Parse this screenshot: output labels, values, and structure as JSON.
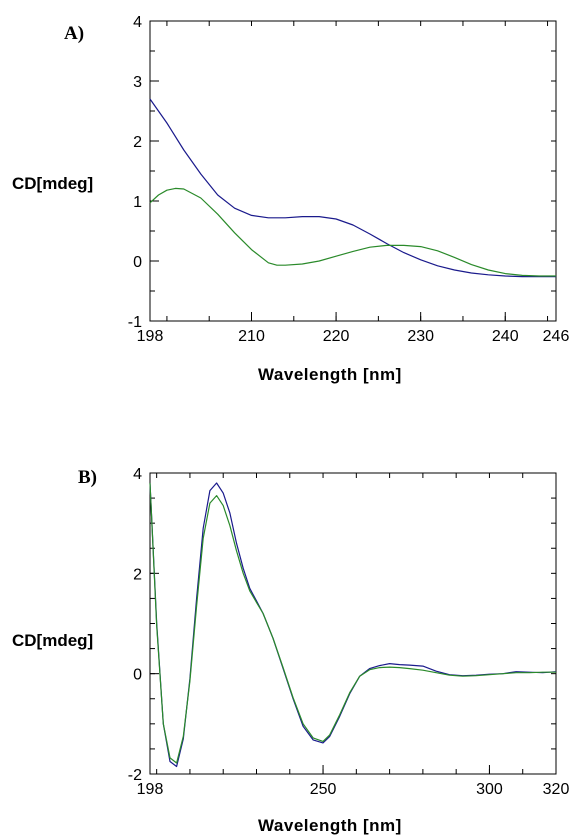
{
  "colors": {
    "series_a": "#1a1a8c",
    "series_b": "#2a8a2a",
    "axis": "#000000"
  },
  "chart_data": [
    {
      "type": "line",
      "panel_label": "A)",
      "xlabel": "Wavelength [nm]",
      "ylabel": "CD[mdeg]",
      "xlim": [
        198,
        246
      ],
      "ylim": [
        -1,
        4
      ],
      "xticks": [
        198,
        210,
        220,
        230,
        240,
        246
      ],
      "yticks": [
        -1,
        0,
        1,
        2,
        3,
        4
      ],
      "grid": false,
      "series": [
        {
          "color": "#1a1a8c",
          "x": [
            198,
            200,
            202,
            204,
            206,
            208,
            210,
            212,
            214,
            216,
            218,
            220,
            222,
            224,
            226,
            228,
            230,
            232,
            234,
            236,
            238,
            240,
            242,
            244,
            246
          ],
          "y": [
            2.7,
            2.3,
            1.85,
            1.45,
            1.1,
            0.88,
            0.76,
            0.72,
            0.72,
            0.74,
            0.74,
            0.7,
            0.6,
            0.45,
            0.29,
            0.14,
            0.02,
            -0.08,
            -0.15,
            -0.2,
            -0.23,
            -0.25,
            -0.26,
            -0.26,
            -0.26
          ]
        },
        {
          "color": "#2a8a2a",
          "x": [
            198,
            199,
            200,
            201,
            202,
            204,
            206,
            208,
            210,
            212,
            213,
            214,
            216,
            218,
            220,
            222,
            224,
            226,
            228,
            230,
            232,
            234,
            236,
            238,
            240,
            242,
            244,
            246
          ],
          "y": [
            0.97,
            1.1,
            1.18,
            1.21,
            1.2,
            1.05,
            0.78,
            0.47,
            0.19,
            -0.03,
            -0.07,
            -0.07,
            -0.05,
            0.0,
            0.08,
            0.16,
            0.23,
            0.26,
            0.26,
            0.24,
            0.17,
            0.06,
            -0.06,
            -0.15,
            -0.21,
            -0.24,
            -0.25,
            -0.25
          ]
        }
      ]
    },
    {
      "type": "line",
      "panel_label": "B)",
      "xlabel": "Wavelength [nm]",
      "ylabel": "CD[mdeg]",
      "xlim": [
        198,
        320
      ],
      "ylim": [
        -2,
        4
      ],
      "xticks": [
        198,
        250,
        300,
        320
      ],
      "yticks": [
        -2,
        0,
        2,
        4
      ],
      "grid": false,
      "series": [
        {
          "color": "#1a1a8c",
          "x": [
            198,
            200,
            202,
            204,
            206,
            208,
            210,
            212,
            214,
            216,
            218,
            220,
            222,
            224,
            226,
            228,
            230,
            232,
            235,
            238,
            241,
            244,
            247,
            250,
            252,
            255,
            258,
            261,
            264,
            267,
            270,
            273,
            276,
            280,
            284,
            288,
            292,
            296,
            300,
            304,
            308,
            312,
            316,
            320
          ],
          "y": [
            3.8,
            1.0,
            -1.0,
            -1.75,
            -1.85,
            -1.3,
            -0.1,
            1.5,
            2.9,
            3.65,
            3.8,
            3.6,
            3.2,
            2.6,
            2.1,
            1.7,
            1.45,
            1.2,
            0.7,
            0.1,
            -0.5,
            -1.05,
            -1.32,
            -1.38,
            -1.25,
            -0.85,
            -0.4,
            -0.05,
            0.1,
            0.16,
            0.2,
            0.18,
            0.17,
            0.15,
            0.05,
            -0.02,
            -0.04,
            -0.03,
            -0.01,
            0.0,
            0.04,
            0.03,
            0.02,
            0.04
          ]
        },
        {
          "color": "#2a8a2a",
          "x": [
            198,
            200,
            202,
            204,
            206,
            208,
            210,
            212,
            214,
            216,
            218,
            220,
            222,
            224,
            226,
            228,
            230,
            232,
            235,
            238,
            241,
            244,
            247,
            250,
            252,
            255,
            258,
            261,
            264,
            267,
            270,
            273,
            276,
            280,
            284,
            288,
            292,
            296,
            300,
            304,
            308,
            312,
            316,
            320
          ],
          "y": [
            3.8,
            0.95,
            -1.0,
            -1.68,
            -1.78,
            -1.25,
            -0.15,
            1.35,
            2.7,
            3.4,
            3.55,
            3.35,
            2.95,
            2.45,
            2.0,
            1.65,
            1.42,
            1.2,
            0.7,
            0.12,
            -0.48,
            -1.0,
            -1.28,
            -1.35,
            -1.22,
            -0.82,
            -0.38,
            -0.05,
            0.08,
            0.12,
            0.13,
            0.12,
            0.1,
            0.07,
            0.02,
            -0.03,
            -0.05,
            -0.04,
            -0.02,
            0.0,
            0.02,
            0.02,
            0.03,
            0.03
          ]
        }
      ]
    }
  ]
}
